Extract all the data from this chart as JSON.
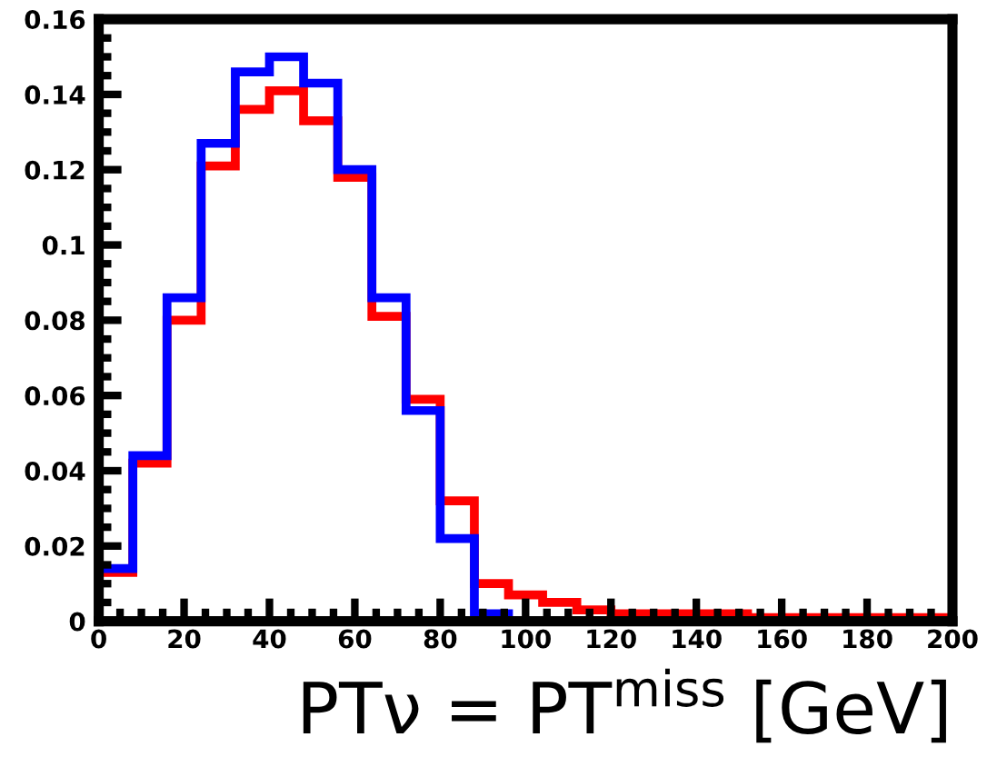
{
  "chart_data": {
    "type": "histogram",
    "xlabel": "PTν = PT$^{miss}$ [GeV]",
    "bins": [
      0,
      8,
      16,
      24,
      32,
      40,
      48,
      56,
      64,
      72,
      80,
      88,
      96,
      104,
      112,
      120,
      128,
      136,
      144,
      152,
      160,
      168,
      176,
      184,
      192,
      200
    ],
    "series": [
      {
        "color": "#ff0000",
        "values": [
          0.013,
          0.042,
          0.08,
          0.121,
          0.136,
          0.141,
          0.133,
          0.118,
          0.081,
          0.059,
          0.032,
          0.01,
          0.007,
          0.005,
          0.003,
          0.002,
          0.002,
          0.002,
          0.002,
          0.001,
          0.001,
          0.001,
          0.001,
          0.001,
          0.001
        ]
      },
      {
        "color": "#0000ff",
        "values": [
          0.014,
          0.044,
          0.086,
          0.127,
          0.146,
          0.15,
          0.143,
          0.12,
          0.086,
          0.056,
          0.022,
          0.002,
          0,
          0,
          0,
          0,
          0,
          0,
          0,
          0,
          0,
          0,
          0,
          0,
          0
        ]
      }
    ],
    "xlim": [
      0,
      200
    ],
    "xticks": [
      0,
      20,
      40,
      60,
      80,
      100,
      120,
      140,
      160,
      180,
      200
    ],
    "ylim": [
      0,
      0.16
    ],
    "yticks": [
      0,
      0.02,
      0.04,
      0.06,
      0.08,
      0.1,
      0.12,
      0.14,
      0.16
    ],
    "grid": false
  }
}
